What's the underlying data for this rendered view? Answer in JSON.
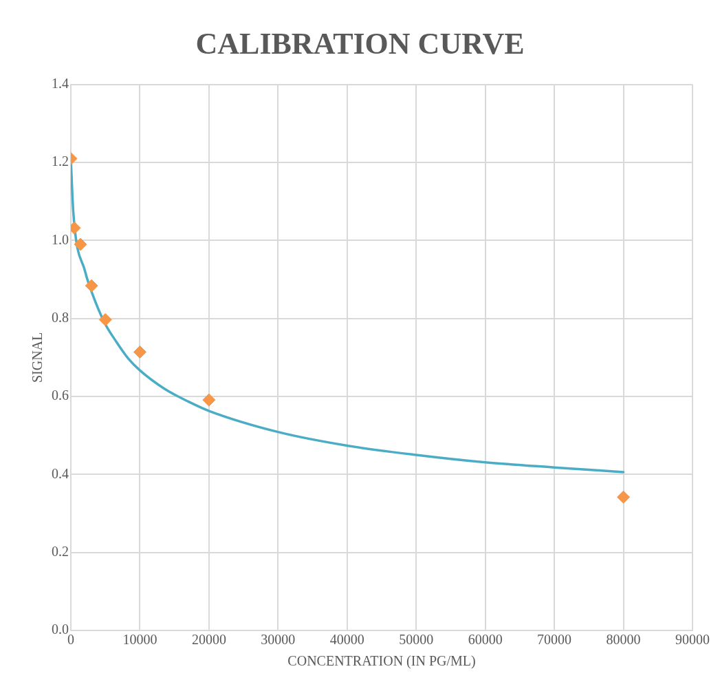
{
  "chart_data": {
    "type": "scatter",
    "title": "CALIBRATION CURVE",
    "xlabel": "CONCENTRATION (IN PG/ML)",
    "ylabel": "SIGNAL",
    "xlim": [
      0,
      90000
    ],
    "xticks": [
      0,
      10000,
      20000,
      30000,
      40000,
      50000,
      60000,
      70000,
      80000,
      90000
    ],
    "ylim": [
      0,
      1.4
    ],
    "yticks": [
      {
        "value": 0,
        "label": "0.0"
      },
      0.2,
      0.4,
      0.6,
      0.8,
      {
        "value": 1,
        "label": "1.0"
      },
      1.2,
      1.4
    ],
    "grid": true,
    "legend": false,
    "series": [
      {
        "type": "line",
        "color": "#4bacc6",
        "marker": "none",
        "line_style": "solid",
        "x": [
          0,
          350,
          2080,
          3125,
          4860,
          6600,
          8330,
          10000,
          13540,
          17000,
          20000,
          30000,
          40000,
          50000,
          60000,
          70000,
          80000
        ],
        "values": [
          1.21,
          1.075,
          0.92,
          0.863,
          0.79,
          0.74,
          0.697,
          0.667,
          0.62,
          0.587,
          0.563,
          0.509,
          0.474,
          0.45,
          0.431,
          0.418,
          0.406
        ]
      },
      {
        "type": "scatter",
        "color": "#f79646",
        "marker": "diamond",
        "x": [
          0,
          500,
          1400,
          3000,
          5000,
          10000,
          20000,
          80000
        ],
        "values": [
          1.21,
          1.032,
          0.99,
          0.884,
          0.797,
          0.714,
          0.591,
          0.342
        ]
      }
    ]
  }
}
